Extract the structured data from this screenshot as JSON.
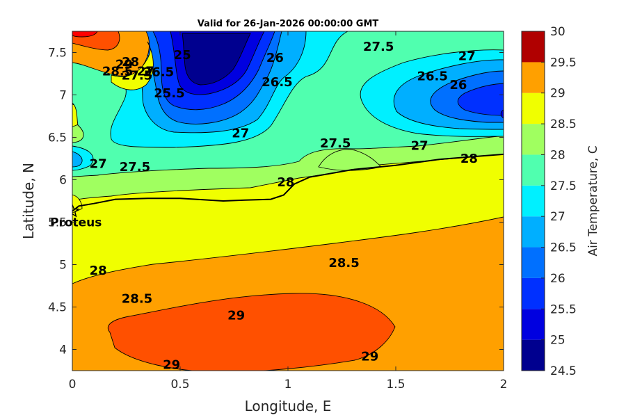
{
  "chart_data": {
    "type": "contour",
    "title": "Valid for 26-Jan-2026 00:00:00 GMT",
    "xlabel": "Longitude, E",
    "ylabel": "Latitude, N",
    "xlim": [
      0,
      2
    ],
    "ylim": [
      3.75,
      7.75
    ],
    "x_ticks": [
      "0",
      "0.5",
      "1",
      "1.5",
      "2"
    ],
    "y_ticks": [
      "4",
      "4.5",
      "5",
      "5.5",
      "6",
      "6.5",
      "7",
      "7.5"
    ],
    "colorbar": {
      "label": "Air Temperature, C",
      "min": 24.5,
      "max": 30,
      "step": 0.5,
      "ticks": [
        "24.5",
        "25",
        "25.5",
        "26",
        "26.5",
        "27",
        "27.5",
        "28",
        "28.5",
        "29",
        "29.5",
        "30"
      ],
      "colors": [
        "#00008f",
        "#0000e0",
        "#0030ff",
        "#0070ff",
        "#00afff",
        "#00f0ff",
        "#50ffaf",
        "#a0ff60",
        "#f0ff00",
        "#ffa000",
        "#ff5000",
        "#ff0000"
      ]
    },
    "point_of_interest": {
      "name": "Proteus",
      "lon": 0.0,
      "lat": 5.63
    },
    "contour_labels": [
      {
        "text": "29",
        "lon": 0.24,
        "lat": 7.36
      },
      {
        "text": "28.5",
        "lon": 0.21,
        "lat": 7.28
      },
      {
        "text": "28",
        "lon": 0.27,
        "lat": 7.39
      },
      {
        "text": "27.5",
        "lon": 0.3,
        "lat": 7.23
      },
      {
        "text": "27",
        "lon": 0.34,
        "lat": 7.28
      },
      {
        "text": "26.5",
        "lon": 0.4,
        "lat": 7.27
      },
      {
        "text": "25.5",
        "lon": 0.45,
        "lat": 7.02
      },
      {
        "text": "25",
        "lon": 0.51,
        "lat": 7.47
      },
      {
        "text": "26",
        "lon": 0.94,
        "lat": 7.44
      },
      {
        "text": "26.5",
        "lon": 0.95,
        "lat": 7.15
      },
      {
        "text": "27.5",
        "lon": 1.42,
        "lat": 7.57
      },
      {
        "text": "27",
        "lon": 1.83,
        "lat": 7.46
      },
      {
        "text": "26.5",
        "lon": 1.67,
        "lat": 7.22
      },
      {
        "text": "26",
        "lon": 1.79,
        "lat": 7.12
      },
      {
        "text": "27",
        "lon": 0.78,
        "lat": 6.55
      },
      {
        "text": "27.5",
        "lon": 1.22,
        "lat": 6.43
      },
      {
        "text": "27",
        "lon": 1.61,
        "lat": 6.4
      },
      {
        "text": "28",
        "lon": 1.84,
        "lat": 6.25
      },
      {
        "text": "27",
        "lon": 0.12,
        "lat": 6.19
      },
      {
        "text": "27.5",
        "lon": 0.29,
        "lat": 6.15
      },
      {
        "text": "28",
        "lon": 0.99,
        "lat": 5.97
      },
      {
        "text": "28",
        "lon": 0.12,
        "lat": 4.93
      },
      {
        "text": "28.5",
        "lon": 1.26,
        "lat": 5.02
      },
      {
        "text": "28.5",
        "lon": 0.3,
        "lat": 4.6
      },
      {
        "text": "29",
        "lon": 0.76,
        "lat": 4.4
      },
      {
        "text": "29",
        "lon": 1.38,
        "lat": 3.92
      },
      {
        "text": "29",
        "lon": 0.46,
        "lat": 3.82
      }
    ],
    "coastline": [
      [
        0.0,
        5.63
      ],
      [
        0.03,
        5.69
      ],
      [
        0.1,
        5.72
      ],
      [
        0.2,
        5.77
      ],
      [
        0.35,
        5.78
      ],
      [
        0.5,
        5.78
      ],
      [
        0.7,
        5.75
      ],
      [
        0.8,
        5.76
      ],
      [
        0.92,
        5.77
      ],
      [
        0.98,
        5.82
      ],
      [
        1.03,
        5.95
      ],
      [
        1.1,
        6.03
      ],
      [
        1.3,
        6.12
      ],
      [
        1.5,
        6.17
      ],
      [
        1.7,
        6.24
      ],
      [
        1.9,
        6.28
      ],
      [
        2.0,
        6.3
      ]
    ]
  }
}
